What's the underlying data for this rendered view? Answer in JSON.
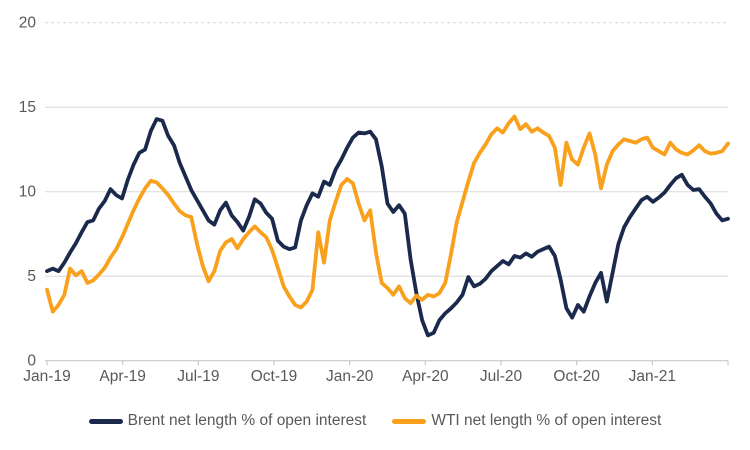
{
  "chart_data": {
    "type": "line",
    "title": "",
    "xlabel": "",
    "ylabel": "",
    "ylim": [
      0,
      20
    ],
    "yticks": [
      0,
      5,
      10,
      15,
      20
    ],
    "top_gridline_style": "dashed",
    "grid": "horizontal",
    "legend_position": "bottom",
    "x_tick_labels": [
      "Jan-19",
      "Apr-19",
      "Jul-19",
      "Oct-19",
      "Jan-20",
      "Apr-20",
      "Jul-20",
      "Oct-20",
      "Jan-21"
    ],
    "x_unit": "weekly observations, Jan-2019 to Apr-2021",
    "series": [
      {
        "name": "Brent net length % of open interest",
        "color": "#1b2a4c",
        "values": [
          5.3,
          5.45,
          5.3,
          5.8,
          6.4,
          6.95,
          7.6,
          8.2,
          8.3,
          9.0,
          9.45,
          10.15,
          9.8,
          9.6,
          10.7,
          11.6,
          12.3,
          12.5,
          13.6,
          14.3,
          14.2,
          13.3,
          12.75,
          11.7,
          10.9,
          10.1,
          9.5,
          8.9,
          8.3,
          8.05,
          8.9,
          9.35,
          8.6,
          8.2,
          7.7,
          8.5,
          9.55,
          9.3,
          8.75,
          8.4,
          7.1,
          6.75,
          6.6,
          6.7,
          8.3,
          9.2,
          9.9,
          9.7,
          10.6,
          10.4,
          11.3,
          11.9,
          12.6,
          13.2,
          13.5,
          13.45,
          13.55,
          13.1,
          11.5,
          9.3,
          8.8,
          9.2,
          8.7,
          6.0,
          4.0,
          2.4,
          1.5,
          1.65,
          2.4,
          2.8,
          3.1,
          3.45,
          3.9,
          4.95,
          4.4,
          4.55,
          4.85,
          5.3,
          5.6,
          5.9,
          5.7,
          6.2,
          6.1,
          6.35,
          6.15,
          6.45,
          6.6,
          6.75,
          6.2,
          4.8,
          3.1,
          2.55,
          3.3,
          2.9,
          3.8,
          4.6,
          5.2,
          3.5,
          5.2,
          6.9,
          7.9,
          8.5,
          9.0,
          9.5,
          9.7,
          9.4,
          9.65,
          9.95,
          10.4,
          10.8,
          11.0,
          10.4,
          10.1,
          10.15,
          9.7,
          9.3,
          8.7,
          8.3,
          8.4
        ]
      },
      {
        "name": "WTI net length % of open interest",
        "color": "#f9a11d",
        "values": [
          4.2,
          2.9,
          3.3,
          3.9,
          5.45,
          5.05,
          5.3,
          4.6,
          4.75,
          5.1,
          5.5,
          6.1,
          6.6,
          7.3,
          8.1,
          8.9,
          9.6,
          10.2,
          10.65,
          10.55,
          10.2,
          9.8,
          9.3,
          8.85,
          8.6,
          8.5,
          6.9,
          5.6,
          4.7,
          5.3,
          6.5,
          7.0,
          7.2,
          6.65,
          7.2,
          7.6,
          7.95,
          7.6,
          7.3,
          6.55,
          5.5,
          4.4,
          3.8,
          3.3,
          3.15,
          3.5,
          4.2,
          7.6,
          5.8,
          8.3,
          9.4,
          10.4,
          10.75,
          10.5,
          9.3,
          8.3,
          8.9,
          6.4,
          4.6,
          4.3,
          3.9,
          4.4,
          3.7,
          3.4,
          3.85,
          3.6,
          3.9,
          3.8,
          4.0,
          4.6,
          6.3,
          8.2,
          9.4,
          10.6,
          11.7,
          12.3,
          12.8,
          13.4,
          13.75,
          13.5,
          14.05,
          14.45,
          13.7,
          14.0,
          13.55,
          13.75,
          13.5,
          13.3,
          12.6,
          10.4,
          12.9,
          11.9,
          11.6,
          12.6,
          13.45,
          12.2,
          10.2,
          11.6,
          12.4,
          12.8,
          13.1,
          13.0,
          12.9,
          13.1,
          13.2,
          12.6,
          12.4,
          12.2,
          12.9,
          12.5,
          12.3,
          12.2,
          12.45,
          12.75,
          12.4,
          12.25,
          12.3,
          12.4,
          12.85
        ]
      }
    ]
  },
  "colors": {
    "gridline": "#d9d9d9",
    "axis_line": "#c0c0c0",
    "tick_label": "#595959",
    "background": "#ffffff"
  },
  "legend": {
    "brent_label": "Brent net length % of open interest",
    "wti_label": "WTI net length % of open interest"
  }
}
